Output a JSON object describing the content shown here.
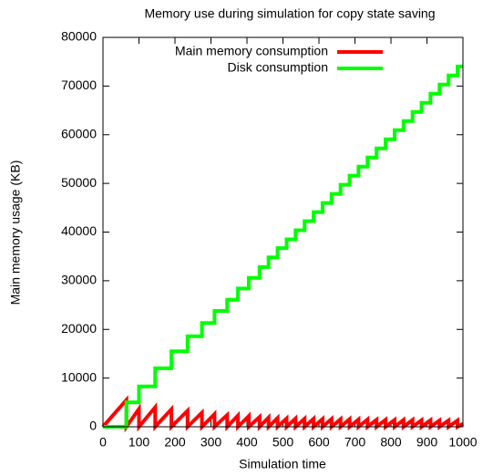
{
  "chart_data": {
    "type": "line",
    "title": "Memory use during simulation for copy state saving",
    "xlabel": "Simulation time",
    "ylabel": "Main memory usage (KB)",
    "xlim": [
      0,
      1000
    ],
    "xticks": [
      0,
      100,
      200,
      300,
      400,
      500,
      600,
      700,
      800,
      900,
      1000
    ],
    "ylim": [
      0,
      80000
    ],
    "yticks": [
      0,
      10000,
      20000,
      30000,
      40000,
      50000,
      60000,
      70000,
      80000
    ],
    "legend": "top-left",
    "x": [
      0,
      65,
      65,
      100,
      100,
      145,
      145,
      190,
      190,
      235,
      235,
      275,
      275,
      310,
      310,
      345,
      345,
      375,
      375,
      405,
      405,
      435,
      435,
      460,
      460,
      485,
      485,
      510,
      510,
      535,
      535,
      560,
      560,
      585,
      585,
      610,
      610,
      635,
      635,
      660,
      660,
      685,
      685,
      710,
      710,
      735,
      735,
      760,
      760,
      785,
      785,
      810,
      810,
      835,
      835,
      860,
      860,
      885,
      885,
      910,
      910,
      935,
      935,
      960,
      960,
      985,
      985,
      1000
    ],
    "series": [
      {
        "name": "Main memory consumption",
        "color": "#ff0000",
        "values": [
          0,
          5500,
          0,
          3700,
          0,
          4000,
          0,
          3600,
          0,
          3300,
          0,
          2900,
          0,
          2600,
          0,
          2400,
          0,
          2300,
          0,
          2200,
          0,
          2000,
          0,
          1900,
          0,
          1800,
          0,
          1700,
          0,
          1700,
          0,
          1650,
          0,
          1650,
          0,
          1600,
          0,
          1600,
          0,
          1550,
          0,
          1550,
          0,
          1500,
          0,
          1500,
          0,
          1450,
          0,
          1450,
          0,
          1400,
          0,
          1400,
          0,
          1400,
          0,
          1350,
          0,
          1350,
          0,
          1300,
          0,
          1300,
          0,
          1300,
          0,
          600
        ]
      },
      {
        "name": "Disk consumption",
        "color": "#00ff00",
        "values": [
          0,
          0,
          5000,
          5000,
          8300,
          8300,
          12000,
          12000,
          15500,
          15500,
          18600,
          18600,
          21300,
          21300,
          23800,
          23800,
          26100,
          26100,
          28400,
          28400,
          30600,
          30600,
          32800,
          32800,
          34800,
          34800,
          36700,
          36700,
          38500,
          38500,
          40370,
          40370,
          42240,
          42240,
          44110,
          44110,
          45980,
          45980,
          47850,
          47850,
          49720,
          49720,
          51590,
          51590,
          53460,
          53460,
          55330,
          55330,
          57200,
          57200,
          59070,
          59070,
          60940,
          60940,
          62810,
          62810,
          64680,
          64680,
          66550,
          66550,
          68420,
          68420,
          70290,
          70290,
          72160,
          72160,
          74030,
          74030
        ]
      }
    ]
  }
}
